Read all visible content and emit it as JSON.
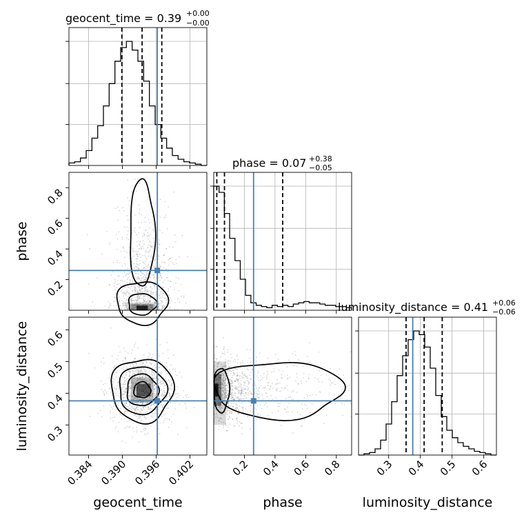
{
  "chart_data": {
    "type": "corner",
    "parameters": [
      "geocent_time",
      "phase",
      "luminosity_distance"
    ],
    "titles": [
      {
        "param": "geocent_time",
        "text": "geocent_time = 0.39",
        "plus": "+0.00",
        "minus": "−0.00"
      },
      {
        "param": "phase",
        "text": "phase = 0.07",
        "plus": "+0.38",
        "minus": "−0.05"
      },
      {
        "param": "luminosity_distance",
        "text": "luminosity_distance = 0.41",
        "plus": "+0.06",
        "minus": "−0.06"
      }
    ],
    "axis_labels": {
      "x": [
        "geocent_time",
        "phase",
        "luminosity_distance"
      ],
      "y": [
        "phase",
        "luminosity_distance"
      ]
    },
    "ranges": {
      "geocent_time": [
        0.3805,
        0.405
      ],
      "phase": [
        0.0,
        0.9
      ],
      "luminosity_distance": [
        0.205,
        0.64
      ]
    },
    "ticks": {
      "geocent_time": {
        "values": [
          0.384,
          0.39,
          0.396,
          0.402
        ],
        "labels": [
          "0.384",
          "0.390",
          "0.396",
          "0.402"
        ]
      },
      "phase_x": {
        "values": [
          0.2,
          0.4,
          0.6,
          0.8
        ],
        "labels": [
          "0.2",
          "0.4",
          "0.6",
          "0.8"
        ]
      },
      "phase_y": {
        "values": [
          0.2,
          0.4,
          0.6,
          0.8
        ],
        "labels": [
          "0.2",
          "0.4",
          "0.6",
          "0.8"
        ]
      },
      "luminosity_distance_x": {
        "values": [
          0.3,
          0.4,
          0.5,
          0.6
        ],
        "labels": [
          "0.3",
          "0.4",
          "0.5",
          "0.6"
        ]
      },
      "luminosity_distance_y": {
        "values": [
          0.3,
          0.4,
          0.5,
          0.6
        ],
        "labels": [
          "0.3",
          "0.4",
          "0.5",
          "0.6"
        ]
      }
    },
    "truths": {
      "geocent_time": 0.3962,
      "phase": 0.26,
      "luminosity_distance": 0.376
    },
    "quantiles": {
      "geocent_time": [
        0.3899,
        0.3935,
        0.397
      ],
      "phase": [
        0.02,
        0.07,
        0.45
      ],
      "luminosity_distance": [
        0.355,
        0.412,
        0.469
      ]
    },
    "histograms": {
      "geocent_time": {
        "range": [
          0.3805,
          0.405
        ],
        "counts": [
          0.02,
          0.03,
          0.06,
          0.12,
          0.22,
          0.32,
          0.48,
          0.66,
          0.84,
          0.95,
          1.0,
          0.93,
          0.84,
          0.68,
          0.48,
          0.33,
          0.22,
          0.14,
          0.08,
          0.05,
          0.03,
          0.02,
          0.01,
          0.0
        ]
      },
      "phase": {
        "range": [
          0.0,
          0.9
        ],
        "counts": [
          1.0,
          0.95,
          0.78,
          0.58,
          0.4,
          0.25,
          0.12,
          0.06,
          0.04,
          0.03,
          0.02,
          0.04,
          0.03,
          0.04,
          0.03,
          0.05,
          0.06,
          0.07,
          0.06,
          0.06,
          0.05,
          0.04,
          0.04,
          0.03,
          0.03,
          0.02
        ]
      },
      "luminosity_distance": {
        "range": [
          0.205,
          0.64
        ],
        "counts": [
          0.0,
          0.01,
          0.02,
          0.05,
          0.12,
          0.25,
          0.43,
          0.64,
          0.8,
          0.93,
          1.0,
          0.97,
          0.87,
          0.7,
          0.48,
          0.31,
          0.2,
          0.14,
          0.1,
          0.07,
          0.05,
          0.03,
          0.02,
          0.01,
          0.0
        ]
      }
    },
    "colors": {
      "truth": "#4682b4",
      "contour": "#000000",
      "grid": "#b0b0b0",
      "points": "#8c8c8c"
    },
    "grid": true
  }
}
